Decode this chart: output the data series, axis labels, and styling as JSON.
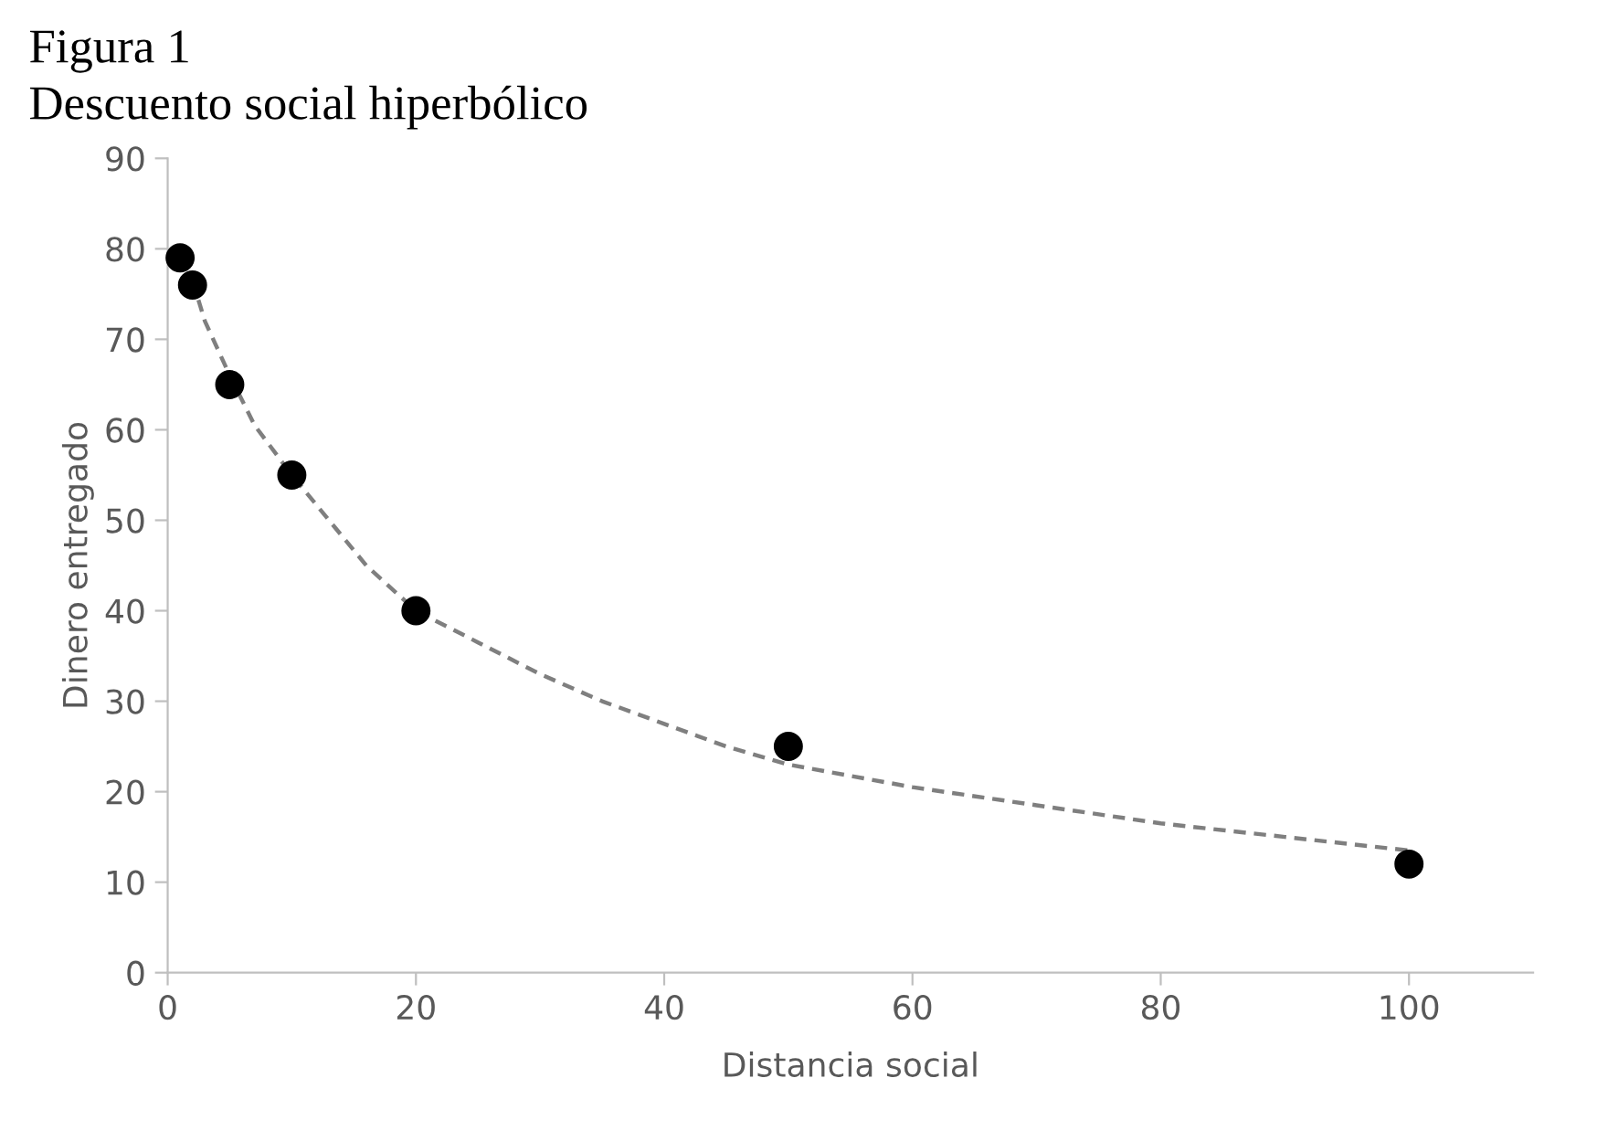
{
  "chart_data": {
    "type": "scatter",
    "title": "Figura 1",
    "subtitle": "Descuento social hiperbólico",
    "xlabel": "Distancia social",
    "ylabel": "Dinero entregado",
    "x": [
      1,
      2,
      5,
      10,
      20,
      50,
      100
    ],
    "series": [
      {
        "color": "#000000",
        "marker": "circle",
        "values": [
          79,
          76,
          65,
          55,
          40,
          25,
          12
        ]
      },
      {
        "type": "line",
        "color": "#7f7f7f",
        "line_style": "dashed",
        "marker": "none",
        "x": [
          2,
          3,
          5,
          7,
          10,
          13,
          16,
          20,
          25,
          30,
          35,
          40,
          45,
          50,
          60,
          70,
          80,
          90,
          100
        ],
        "values": [
          76.5,
          72,
          66,
          60.5,
          55,
          50,
          45,
          40,
          36.5,
          33,
          30,
          27.5,
          25,
          23,
          20.5,
          18.5,
          16.5,
          15,
          13.5
        ]
      }
    ],
    "xlim": [
      0,
      110
    ],
    "xticks": [
      0,
      20,
      40,
      60,
      80,
      100
    ],
    "ylim": [
      0,
      90
    ],
    "yticks": [
      0,
      10,
      20,
      30,
      40,
      50,
      60,
      70,
      80,
      90
    ],
    "grid": false,
    "legend": false
  }
}
